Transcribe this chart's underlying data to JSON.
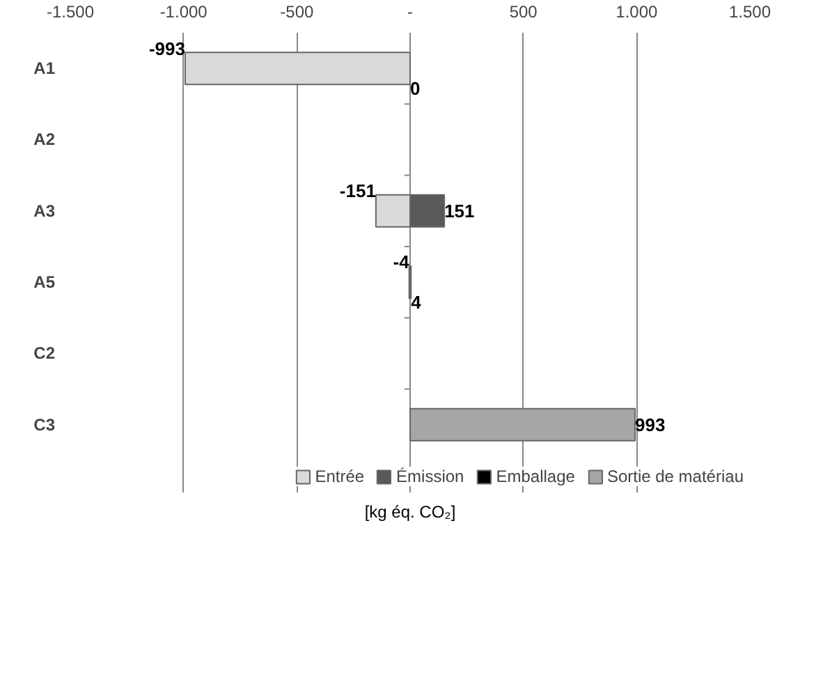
{
  "chart_data": {
    "type": "bar",
    "orientation": "horizontal",
    "stacked": true,
    "xlabel": "[kg éq. CO₂]",
    "categories": [
      "A1",
      "A2",
      "A3",
      "A5",
      "C2",
      "C3"
    ],
    "series": [
      {
        "name": "Entrée",
        "color": "#d9d9d9",
        "values": [
          -993,
          null,
          -151,
          -4,
          null,
          null
        ]
      },
      {
        "name": "Émission",
        "color": "#595959",
        "values": [
          0,
          null,
          151,
          null,
          null,
          null
        ]
      },
      {
        "name": "Emballage",
        "color": "#000000",
        "values": [
          null,
          null,
          null,
          4,
          null,
          null
        ]
      },
      {
        "name": "Sortie de matériau",
        "color": "#a6a6a6",
        "values": [
          null,
          null,
          null,
          null,
          null,
          993
        ]
      }
    ],
    "xlim": [
      -1500,
      1500
    ],
    "xticks": [
      {
        "value": -1500,
        "label": "-1.500"
      },
      {
        "value": -1000,
        "label": "-1.000"
      },
      -500,
      {
        "value": 0,
        "label": "-"
      },
      500,
      {
        "value": 1000,
        "label": "1.000"
      },
      {
        "value": 1500,
        "label": "1.500"
      }
    ],
    "data_labels": true,
    "grid": "x",
    "legend": "bottom"
  }
}
